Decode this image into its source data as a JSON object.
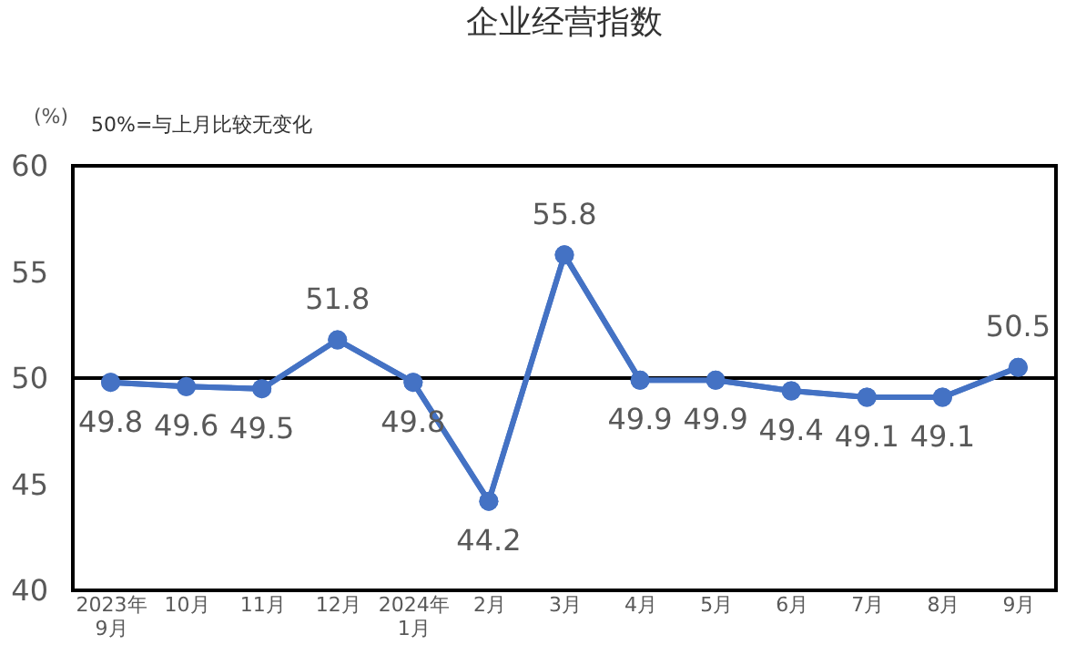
{
  "chart_data": {
    "type": "line",
    "title": "企业经营指数",
    "ylabel": "(%)",
    "annotations": [
      "50%=与上月比较无变化"
    ],
    "categories": [
      "2023年\n9月",
      "10月",
      "11月",
      "12月",
      "2024年\n1月",
      "2月",
      "3月",
      "4月",
      "5月",
      "6月",
      "7月",
      "8月",
      "9月"
    ],
    "series": [
      {
        "color": "#4472c4",
        "values": [
          49.8,
          49.6,
          49.5,
          51.8,
          49.8,
          44.2,
          55.8,
          49.9,
          49.9,
          49.4,
          49.1,
          49.1,
          50.5
        ]
      }
    ],
    "ylim": [
      40,
      60
    ],
    "yticks": [
      40,
      45,
      50,
      55,
      60
    ],
    "ref_lines": [
      {
        "axis": "y",
        "value": 50,
        "color": "#000000"
      }
    ],
    "data_labels": true,
    "marker": "circle",
    "line_style": "solid",
    "grid": false,
    "legend": false
  }
}
